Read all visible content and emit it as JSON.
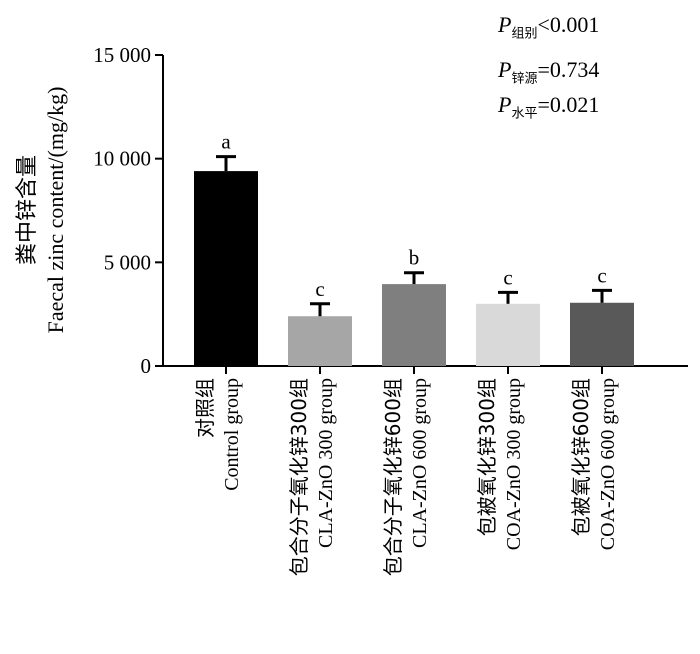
{
  "stats": [
    {
      "symbol": "P",
      "subscript": "组别",
      "relation": "<0.001"
    },
    {
      "symbol": "P",
      "subscript": "锌源",
      "relation": "=0.734"
    },
    {
      "symbol": "P",
      "subscript": "水平",
      "relation": "=0.021"
    }
  ],
  "chart_data": {
    "type": "bar",
    "ylabel_cn": "粪中锌含量",
    "ylabel_en": "Faecal zinc content/(mg/kg)",
    "ylim": [
      0,
      15000
    ],
    "yticks": [
      {
        "value": 0,
        "label": "0"
      },
      {
        "value": 5000,
        "label": "5 000"
      },
      {
        "value": 10000,
        "label": "10 000"
      },
      {
        "value": 15000,
        "label": "15 000"
      }
    ],
    "categories": [
      {
        "cn": "对照组",
        "en": "Control group"
      },
      {
        "cn": "包合分子氧化锌300组",
        "en": "CLA-ZnO 300 group"
      },
      {
        "cn": "包合分子氧化锌600组",
        "en": "CLA-ZnO 600 group"
      },
      {
        "cn": "包被氧化锌300组",
        "en": "COA-ZnO 300 group"
      },
      {
        "cn": "包被氧化锌600组",
        "en": "COA-ZnO 600 group"
      }
    ],
    "values": [
      9400,
      2400,
      3950,
      3000,
      3050
    ],
    "errors": [
      700,
      600,
      550,
      550,
      600
    ],
    "significance": [
      "a",
      "c",
      "b",
      "c",
      "c"
    ],
    "colors": [
      "#000000",
      "#a6a6a6",
      "#7f7f7f",
      "#d9d9d9",
      "#595959"
    ],
    "grid": false
  }
}
